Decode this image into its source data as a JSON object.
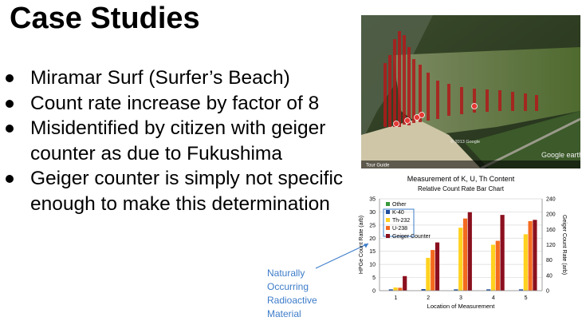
{
  "slide": {
    "title": "Case Studies",
    "bullets": [
      "Miramar Surf (Surfer’s Beach)",
      "Count rate increase by factor of 8",
      "Misidentified by citizen with geiger counter as due to Fukushima",
      "Geiger counter is simply not specific enough to make this determination"
    ],
    "annotation": [
      "Naturally",
      "Occurring",
      "Radioactive",
      "Material"
    ]
  },
  "map_image": {
    "tour_guide": "Tour Guide",
    "copyright": "© 2013 Google",
    "logo": "Google earth"
  },
  "colors": {
    "other": "#3a9a3a",
    "k40": "#1f4e9c",
    "th232": "#ffd21f",
    "u238": "#f46a1f",
    "geiger": "#8b0f1e",
    "annotation": "#3d7cc9"
  },
  "chart_data": {
    "type": "bar",
    "title": "Measurement of K, U, Th Content",
    "subtitle": "Relative Count Rate Bar Chart",
    "xlabel": "Location of Measurement",
    "ylabel": "HPGe Count Rate (arb)",
    "y2label": "Geiger Count Rate (arb)",
    "categories": [
      "1",
      "2",
      "3",
      "4",
      "5"
    ],
    "ylim": [
      0,
      35
    ],
    "yticks": [
      0,
      5,
      10,
      15,
      20,
      25,
      30,
      35
    ],
    "y2lim": [
      0,
      240
    ],
    "y2ticks": [
      0,
      40,
      80,
      120,
      160,
      200,
      240
    ],
    "grid": true,
    "legend_position": "top-left",
    "series": [
      {
        "name": "Other",
        "axis": "left",
        "values": [
          0,
          0,
          0,
          0,
          0
        ]
      },
      {
        "name": "K-40",
        "axis": "left",
        "values": [
          0.5,
          0.6,
          0.5,
          0.5,
          0.5
        ]
      },
      {
        "name": "Th-232",
        "axis": "left",
        "values": [
          1.2,
          12.5,
          24,
          17.5,
          21.5
        ]
      },
      {
        "name": "U-238",
        "axis": "left",
        "values": [
          1.1,
          15.5,
          27.5,
          19,
          26.5
        ]
      },
      {
        "name": "Geiger Counter",
        "axis": "right",
        "values": [
          38,
          126,
          205,
          198,
          185
        ]
      }
    ]
  }
}
